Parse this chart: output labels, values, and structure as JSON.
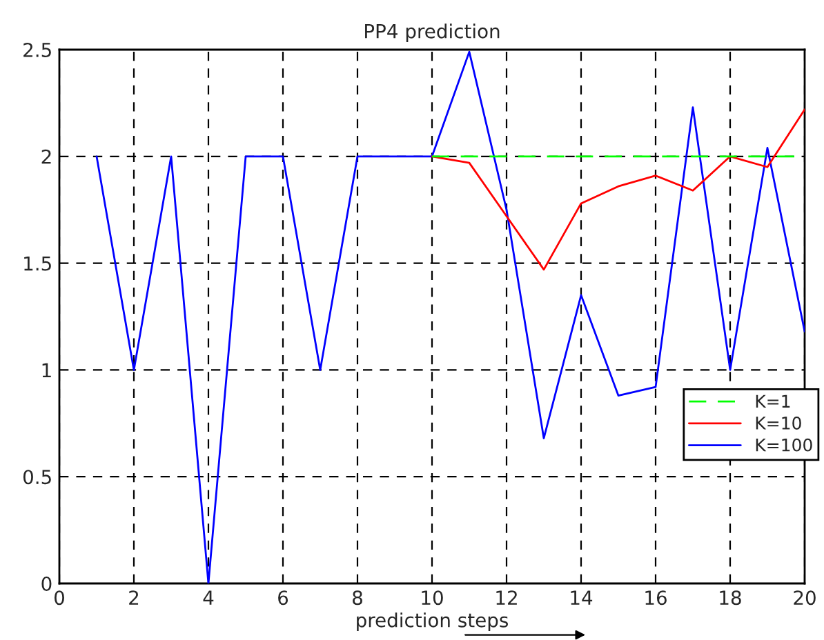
{
  "chart_data": {
    "type": "line",
    "title": "PP4 prediction",
    "xlabel": "prediction steps",
    "x": [
      1,
      2,
      3,
      4,
      5,
      6,
      7,
      8,
      9,
      10,
      11,
      12,
      13,
      14,
      15,
      16,
      17,
      18,
      19,
      20
    ],
    "series": [
      {
        "name": "K=1",
        "color": "#00ff00",
        "line_style": "dashed",
        "values": [
          null,
          null,
          null,
          null,
          null,
          null,
          null,
          null,
          null,
          2,
          2,
          2,
          2,
          2,
          2,
          2,
          2,
          2,
          2,
          2
        ]
      },
      {
        "name": "K=10",
        "color": "#ff0000",
        "line_style": "solid",
        "values": [
          null,
          null,
          null,
          null,
          null,
          null,
          null,
          null,
          null,
          2,
          1.97,
          1.72,
          1.47,
          1.78,
          1.86,
          1.91,
          1.84,
          2,
          1.95,
          2.22
        ]
      },
      {
        "name": "K=100",
        "color": "#0000ff",
        "line_style": "solid",
        "values": [
          2,
          1,
          2,
          0,
          2,
          2,
          1,
          2,
          2,
          2,
          2.49,
          1.75,
          0.68,
          1.35,
          0.88,
          0.92,
          2.23,
          1,
          2.04,
          1.18
        ]
      }
    ],
    "xlim": [
      0,
      20
    ],
    "xticks": [
      0,
      2,
      4,
      6,
      8,
      10,
      12,
      14,
      16,
      18,
      20
    ],
    "ylim": [
      0,
      2.5
    ],
    "yticks": [
      0,
      0.5,
      1,
      1.5,
      2,
      2.5
    ],
    "grid": true,
    "legend": "right",
    "marker": "none"
  }
}
